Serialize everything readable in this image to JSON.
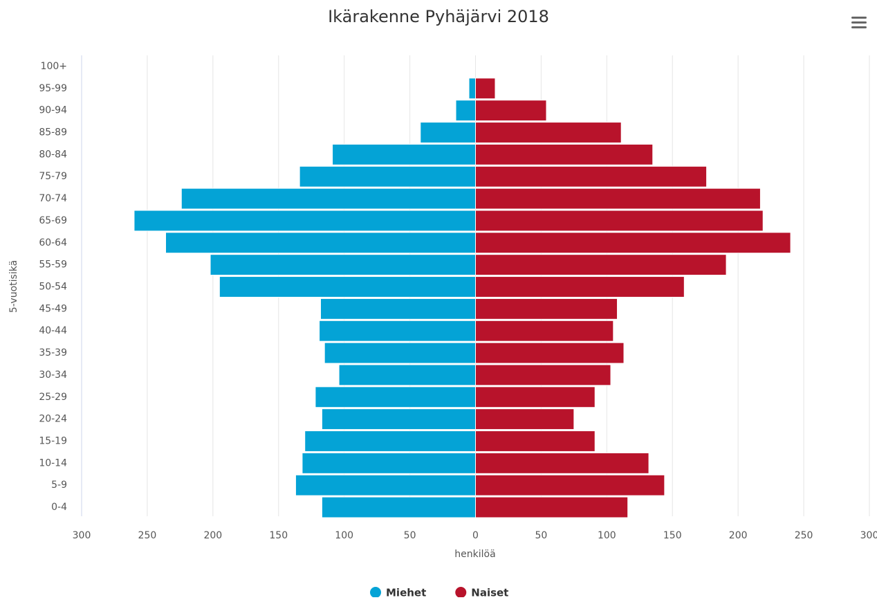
{
  "chart_data": {
    "type": "bar",
    "orientation": "horizontal",
    "title": "Ikärakenne Pyhäjärvi 2018",
    "x_label": "henkilöä",
    "y_label": "5-vuotisikä",
    "categories": [
      "0-4",
      "5-9",
      "10-14",
      "15-19",
      "20-24",
      "25-29",
      "30-34",
      "35-39",
      "40-44",
      "45-49",
      "50-54",
      "55-59",
      "60-64",
      "65-69",
      "70-74",
      "75-79",
      "80-84",
      "85-89",
      "90-94",
      "95-99",
      "100+"
    ],
    "series": [
      {
        "name": "Miehet",
        "color": "#04a3d6",
        "values": [
          -117,
          -137,
          -132,
          -130,
          -117,
          -122,
          -104,
          -115,
          -119,
          -118,
          -195,
          -202,
          -236,
          -260,
          -224,
          -134,
          -109,
          -42,
          -15,
          -5,
          0
        ]
      },
      {
        "name": "Naiset",
        "color": "#b8132b",
        "values": [
          116,
          144,
          132,
          91,
          75,
          91,
          103,
          113,
          105,
          108,
          159,
          191,
          240,
          219,
          217,
          176,
          135,
          111,
          54,
          15,
          0
        ]
      }
    ],
    "xlim": [
      -300,
      300
    ],
    "xticks": [
      {
        "value": -300,
        "label": "300"
      },
      {
        "value": -250,
        "label": "250"
      },
      {
        "value": -200,
        "label": "200"
      },
      {
        "value": -150,
        "label": "150"
      },
      {
        "value": -100,
        "label": "100"
      },
      {
        "value": -50,
        "label": "50"
      },
      0,
      50,
      100,
      150,
      200,
      250,
      300
    ],
    "grid": true,
    "legend": "bottom"
  }
}
